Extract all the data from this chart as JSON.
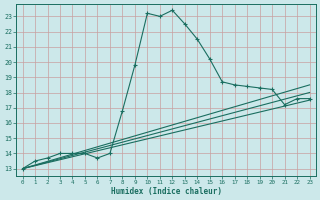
{
  "xlabel": "Humidex (Indice chaleur)",
  "bg_color": "#cce8ea",
  "grid_color": "#b0d4d8",
  "line_color": "#1a6e60",
  "xlim": [
    -0.5,
    23.5
  ],
  "ylim": [
    12.5,
    23.8
  ],
  "yticks": [
    13,
    14,
    15,
    16,
    17,
    18,
    19,
    20,
    21,
    22,
    23
  ],
  "xticks": [
    0,
    1,
    2,
    3,
    4,
    5,
    6,
    7,
    8,
    9,
    10,
    11,
    12,
    13,
    14,
    15,
    16,
    17,
    18,
    19,
    20,
    21,
    22,
    23
  ],
  "series1_x": [
    0,
    1,
    2,
    3,
    4,
    5,
    6,
    7,
    8,
    9,
    10,
    11,
    12,
    13,
    14,
    15,
    16,
    17,
    18,
    19,
    20,
    21,
    22,
    23
  ],
  "series1_y": [
    13.0,
    13.5,
    13.7,
    14.0,
    14.0,
    14.0,
    13.7,
    14.0,
    16.8,
    19.8,
    23.2,
    23.0,
    23.4,
    22.5,
    21.5,
    20.2,
    18.7,
    18.5,
    18.4,
    18.3,
    18.2,
    17.2,
    17.6,
    17.6
  ],
  "series2_x": [
    0,
    23
  ],
  "series2_y": [
    13.0,
    17.5
  ],
  "series3_x": [
    0,
    23
  ],
  "series3_y": [
    13.0,
    18.0
  ],
  "series4_x": [
    0,
    23
  ],
  "series4_y": [
    13.0,
    18.5
  ]
}
